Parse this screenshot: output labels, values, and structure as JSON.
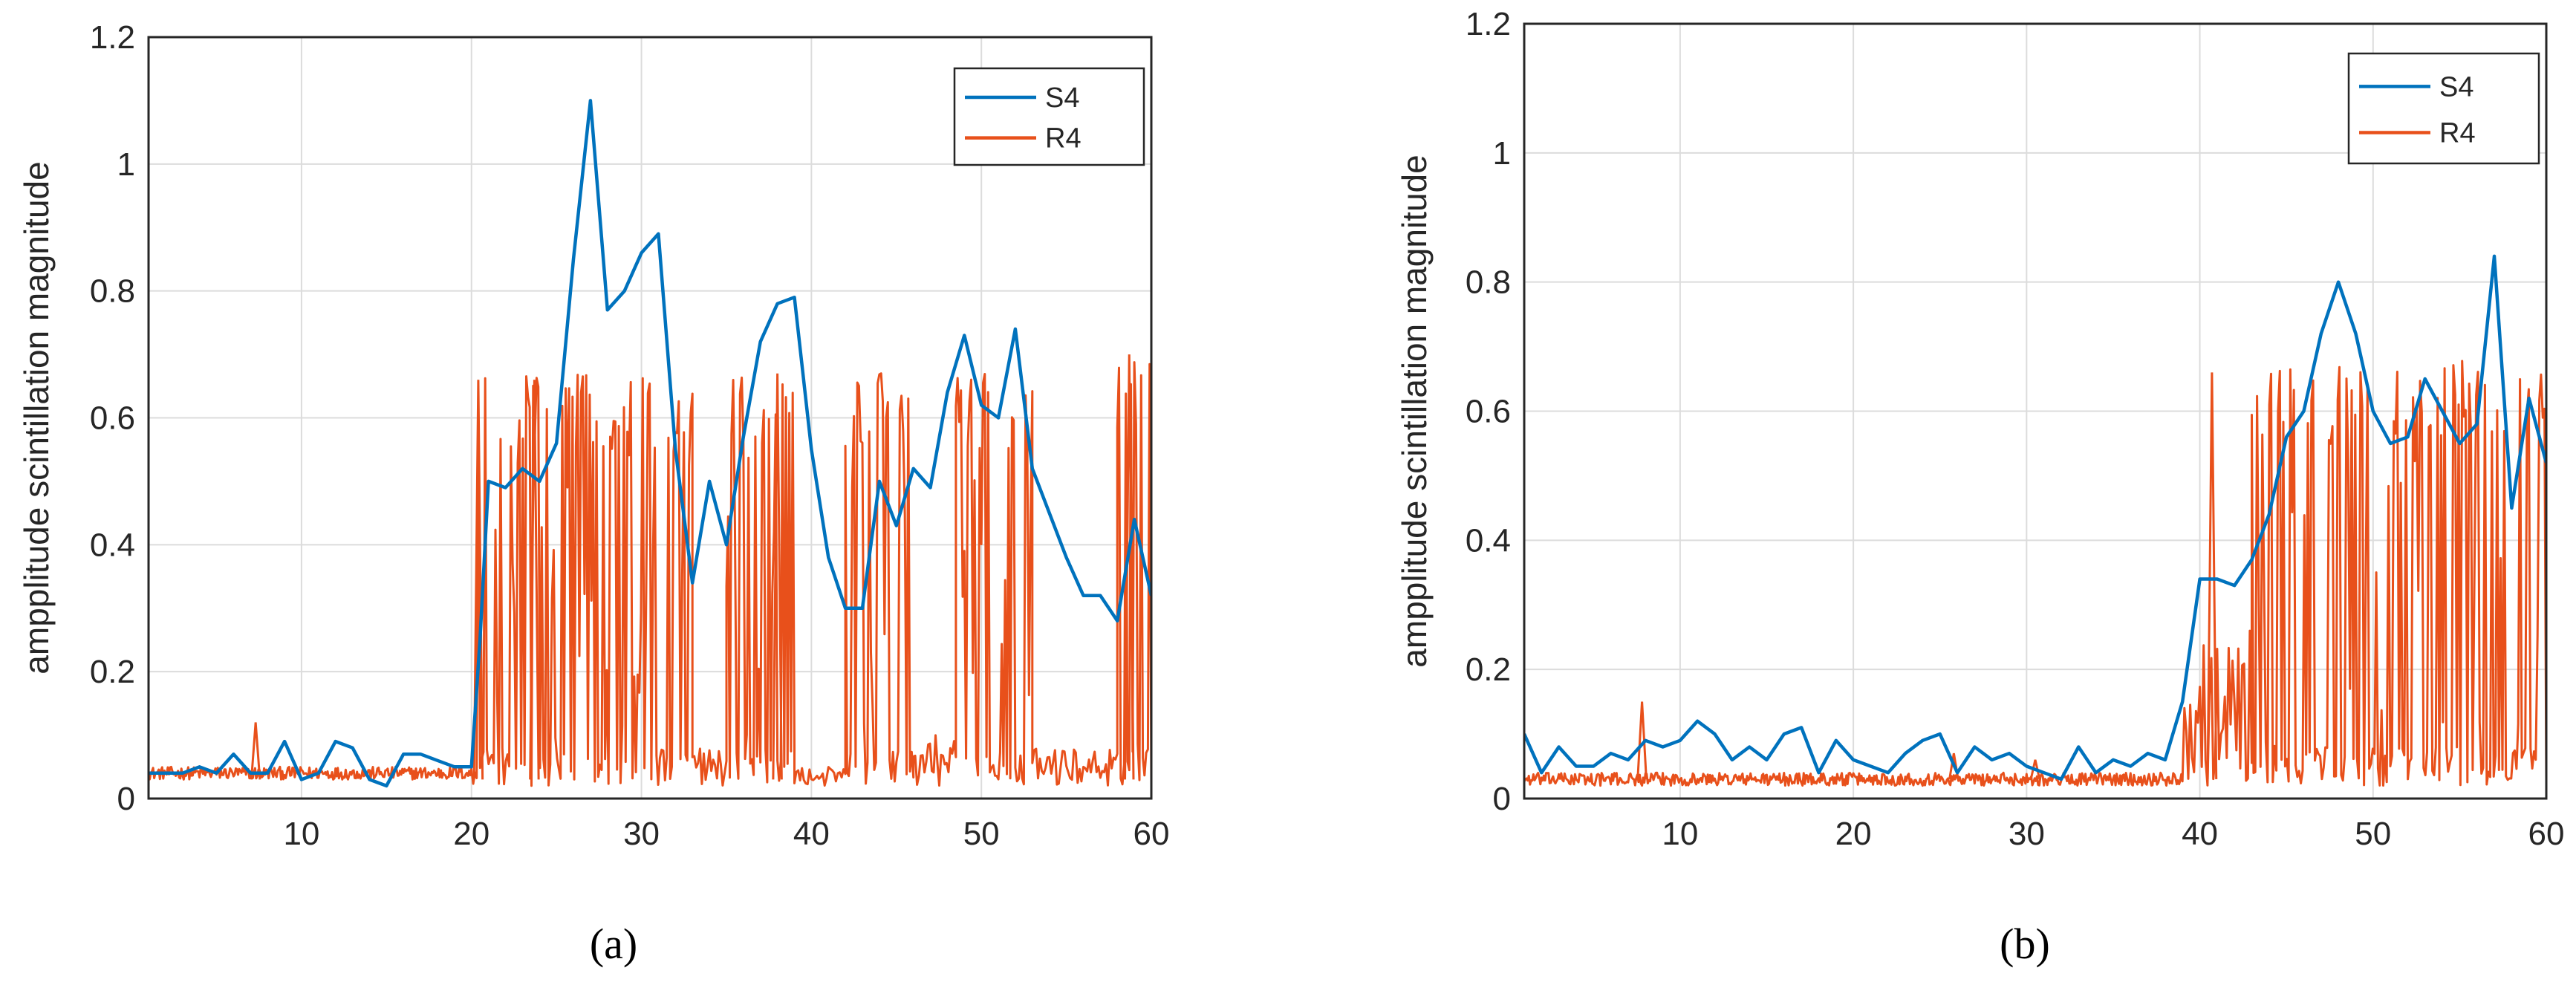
{
  "chart_data": [
    {
      "type": "line",
      "caption": "(a)",
      "ylabel": "ampplitude scintillation magnitude",
      "xlim": [
        1,
        60
      ],
      "ylim": [
        0,
        1.2
      ],
      "xticks": [
        10,
        20,
        30,
        40,
        50,
        60
      ],
      "yticks": [
        0,
        0.2,
        0.4,
        0.6,
        0.8,
        1,
        1.2
      ],
      "ytick_labels": [
        "0",
        "0.2",
        "0.4",
        "0.6",
        "0.8",
        "1",
        "1.2"
      ],
      "grid": true,
      "legend_position": "top-right",
      "series": [
        {
          "name": "S4",
          "color": "#0072BD",
          "x": [
            1,
            2,
            3,
            4,
            5,
            6,
            7,
            8,
            9,
            10,
            11,
            12,
            13,
            14,
            15,
            16,
            17,
            18,
            19,
            20,
            20.5,
            21,
            22,
            23,
            24,
            25,
            26,
            27,
            28,
            29,
            30,
            31,
            32,
            33,
            34,
            35,
            36,
            37,
            38,
            39,
            40,
            41,
            42,
            43,
            44,
            45,
            46,
            47,
            48,
            49,
            50,
            51,
            52,
            53,
            54,
            55,
            56,
            57,
            58,
            59,
            60
          ],
          "y": [
            0.04,
            0.04,
            0.04,
            0.05,
            0.04,
            0.07,
            0.04,
            0.04,
            0.09,
            0.03,
            0.04,
            0.09,
            0.08,
            0.03,
            0.02,
            0.07,
            0.07,
            0.06,
            0.05,
            0.05,
            0.25,
            0.5,
            0.49,
            0.52,
            0.5,
            0.56,
            0.85,
            1.1,
            0.77,
            0.8,
            0.86,
            0.89,
            0.55,
            0.34,
            0.5,
            0.4,
            0.57,
            0.72,
            0.78,
            0.79,
            0.55,
            0.38,
            0.3,
            0.3,
            0.5,
            0.43,
            0.52,
            0.49,
            0.64,
            0.73,
            0.62,
            0.6,
            0.74,
            0.52,
            0.45,
            0.38,
            0.32,
            0.32,
            0.28,
            0.44,
            0.32
          ]
        },
        {
          "name": "R4",
          "color": "#E8501B",
          "segments": [
            [
              1,
              20,
              0.03,
              0.05,
              5
            ],
            [
              20,
              33,
              0.02,
              0.67,
              3.3
            ],
            [
              33,
              35,
              0.02,
              0.08,
              3
            ],
            [
              35,
              39,
              0.02,
              0.67,
              3.3
            ],
            [
              39,
              42,
              0.02,
              0.05,
              3
            ],
            [
              42,
              46,
              0.02,
              0.67,
              3.3
            ],
            [
              46,
              48.5,
              0.02,
              0.1,
              3
            ],
            [
              48.5,
              53,
              0.02,
              0.67,
              3.3
            ],
            [
              53,
              58,
              0.02,
              0.08,
              3
            ],
            [
              58,
              60,
              0.02,
              0.69,
              3.3
            ]
          ],
          "spikes": [
            [
              7.3,
              0.12
            ],
            [
              20.4,
              0.66
            ],
            [
              23.7,
              0.66
            ],
            [
              38,
              0.67
            ],
            [
              58.7,
              0.7
            ]
          ]
        }
      ]
    },
    {
      "type": "line",
      "caption": "(b)",
      "ylabel": "ampplitude scintillation magnitude",
      "xlim": [
        1,
        60
      ],
      "ylim": [
        0,
        1.2
      ],
      "xticks": [
        10,
        20,
        30,
        40,
        50,
        60
      ],
      "yticks": [
        0,
        0.2,
        0.4,
        0.6,
        0.8,
        1,
        1.2
      ],
      "ytick_labels": [
        "0",
        "0.2",
        "0.4",
        "0.6",
        "0.8",
        "1",
        "1.2"
      ],
      "grid": true,
      "legend_position": "top-right",
      "series": [
        {
          "name": "S4",
          "color": "#0072BD",
          "x": [
            1,
            2,
            3,
            4,
            5,
            6,
            7,
            8,
            9,
            10,
            11,
            12,
            13,
            14,
            15,
            16,
            17,
            18,
            19,
            20,
            21,
            22,
            23,
            24,
            25,
            26,
            27,
            28,
            29,
            30,
            31,
            32,
            33,
            34,
            35,
            36,
            37,
            38,
            39,
            40,
            41,
            42,
            43,
            44,
            45,
            46,
            47,
            48,
            49,
            50,
            51,
            52,
            53,
            54,
            55,
            56,
            57,
            58,
            59,
            60
          ],
          "y": [
            0.1,
            0.04,
            0.08,
            0.05,
            0.05,
            0.07,
            0.06,
            0.09,
            0.08,
            0.09,
            0.12,
            0.1,
            0.06,
            0.08,
            0.06,
            0.1,
            0.11,
            0.04,
            0.09,
            0.06,
            0.05,
            0.04,
            0.07,
            0.09,
            0.1,
            0.04,
            0.08,
            0.06,
            0.07,
            0.05,
            0.04,
            0.03,
            0.08,
            0.04,
            0.06,
            0.05,
            0.07,
            0.06,
            0.15,
            0.34,
            0.34,
            0.33,
            0.37,
            0.44,
            0.56,
            0.6,
            0.72,
            0.8,
            0.72,
            0.6,
            0.55,
            0.56,
            0.65,
            0.6,
            0.55,
            0.58,
            0.84,
            0.45,
            0.62,
            0.52
          ]
        },
        {
          "name": "R4",
          "color": "#E8501B",
          "segments": [
            [
              1,
              39,
              0.02,
              0.04,
              5
            ],
            [
              39,
              43,
              0.02,
              0.26,
              3
            ],
            [
              43,
              60,
              0.02,
              0.68,
              3.3
            ]
          ],
          "spikes": [
            [
              7.8,
              0.15
            ],
            [
              25.8,
              0.07
            ],
            [
              30.5,
              0.06
            ],
            [
              40.7,
              0.66
            ]
          ]
        }
      ]
    }
  ]
}
